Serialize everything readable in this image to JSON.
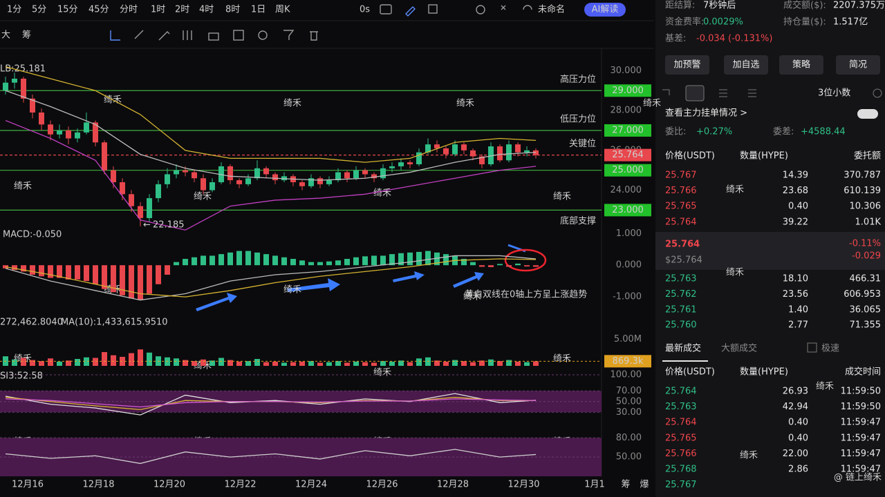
{
  "toolbar": {
    "intervals": [
      "1分",
      "5分",
      "15分",
      "45分",
      "分时",
      "1时",
      "2时",
      "4时",
      "8时",
      "1日",
      "周K"
    ],
    "active": 7,
    "timer": "0s",
    "layout": "未命名",
    "ai": "AI解读",
    "tools": [
      "大",
      "筹"
    ]
  },
  "kline": {
    "boll_label": "LB:25.181",
    "min_arrow": "←",
    "min_label": "22.185",
    "min_value": 22.185,
    "ylim": [
      21.8,
      30.5
    ],
    "yticks": [
      {
        "value": 30,
        "label": "30.000"
      },
      {
        "value": 28,
        "label": "28.000"
      },
      {
        "value": 26,
        "label": "26.000"
      },
      {
        "value": 24,
        "label": "24.000"
      }
    ],
    "levels": [
      {
        "value": 29,
        "label": "29.000",
        "name": "高压力位"
      },
      {
        "value": 27,
        "label": "27.000",
        "name": "低压力位"
      },
      {
        "value": 25.764,
        "label": "25.764",
        "name": "关键位",
        "color": "#e8474d"
      },
      {
        "value": 25,
        "label": "25.000"
      },
      {
        "value": 23,
        "label": "23.000",
        "name": "底部支撑"
      }
    ],
    "candles": [
      [
        29.0,
        29.7,
        28.8,
        29.4
      ],
      [
        29.4,
        29.9,
        29.1,
        29.6
      ],
      [
        29.6,
        29.7,
        28.4,
        28.6
      ],
      [
        28.6,
        28.8,
        27.6,
        27.9
      ],
      [
        27.9,
        28.1,
        27.0,
        27.3
      ],
      [
        27.3,
        27.5,
        26.5,
        26.8
      ],
      [
        26.8,
        27.3,
        26.6,
        27.0
      ],
      [
        27.0,
        27.2,
        26.3,
        26.6
      ],
      [
        26.6,
        27.1,
        26.4,
        26.9
      ],
      [
        26.9,
        27.9,
        26.8,
        27.4
      ],
      [
        27.4,
        27.5,
        26.2,
        26.4
      ],
      [
        26.4,
        26.5,
        24.8,
        25.0
      ],
      [
        25.0,
        25.2,
        24.1,
        24.4
      ],
      [
        24.4,
        24.6,
        23.5,
        23.8
      ],
      [
        23.8,
        24.0,
        22.9,
        23.2
      ],
      [
        23.2,
        23.4,
        22.185,
        22.6
      ],
      [
        22.6,
        23.8,
        22.4,
        23.6
      ],
      [
        23.6,
        24.5,
        23.4,
        24.3
      ],
      [
        24.3,
        25.1,
        24.1,
        24.8
      ],
      [
        24.8,
        25.3,
        24.6,
        25.0
      ],
      [
        25.0,
        25.2,
        24.7,
        24.9
      ],
      [
        24.9,
        25.0,
        24.4,
        24.6
      ],
      [
        24.6,
        24.8,
        23.8,
        24.0
      ],
      [
        24.0,
        24.6,
        23.9,
        24.4
      ],
      [
        24.4,
        25.4,
        24.3,
        25.2
      ],
      [
        25.2,
        25.3,
        24.3,
        24.5
      ],
      [
        24.5,
        24.6,
        24.1,
        24.3
      ],
      [
        24.3,
        24.8,
        24.2,
        24.6
      ],
      [
        24.6,
        25.5,
        24.5,
        25.1
      ],
      [
        25.1,
        25.2,
        24.6,
        24.8
      ],
      [
        24.8,
        24.9,
        24.3,
        24.5
      ],
      [
        24.5,
        24.9,
        24.4,
        24.7
      ],
      [
        24.7,
        24.8,
        24.2,
        24.4
      ],
      [
        24.4,
        24.5,
        24.0,
        24.2
      ],
      [
        24.2,
        24.8,
        24.1,
        24.6
      ],
      [
        24.6,
        24.7,
        24.1,
        24.3
      ],
      [
        24.3,
        24.7,
        24.2,
        24.5
      ],
      [
        24.5,
        25.1,
        24.4,
        24.9
      ],
      [
        24.9,
        25.0,
        24.4,
        24.6
      ],
      [
        24.6,
        25.2,
        24.5,
        25.0
      ],
      [
        25.0,
        25.1,
        24.6,
        24.8
      ],
      [
        24.8,
        24.9,
        24.4,
        24.6
      ],
      [
        24.6,
        25.3,
        24.5,
        25.1
      ],
      [
        25.1,
        25.4,
        24.9,
        25.2
      ],
      [
        25.2,
        25.6,
        25.0,
        25.4
      ],
      [
        25.4,
        25.5,
        25.1,
        25.3
      ],
      [
        25.3,
        26.1,
        25.2,
        25.9
      ],
      [
        25.9,
        26.6,
        25.8,
        26.3
      ],
      [
        26.3,
        26.5,
        25.9,
        26.1
      ],
      [
        26.1,
        26.2,
        25.6,
        25.8
      ],
      [
        25.8,
        26.5,
        25.7,
        26.3
      ],
      [
        26.3,
        26.4,
        25.8,
        26.0
      ],
      [
        26.0,
        26.1,
        25.5,
        25.7
      ],
      [
        25.7,
        25.8,
        25.1,
        25.3
      ],
      [
        25.3,
        26.4,
        25.2,
        26.2
      ],
      [
        26.2,
        26.3,
        25.4,
        25.5
      ],
      [
        25.5,
        26.5,
        25.4,
        26.3
      ],
      [
        26.3,
        26.4,
        25.7,
        25.9
      ],
      [
        25.9,
        26.2,
        25.7,
        26.0
      ],
      [
        26.0,
        26.1,
        25.6,
        25.764
      ]
    ],
    "line_index": [
      0,
      5,
      10,
      15,
      20,
      25,
      30,
      35,
      40,
      45,
      50,
      55,
      59
    ],
    "boll": [
      {
        "color": "#d6b431",
        "values": [
          30.2,
          29.6,
          29.0,
          27.8,
          26.0,
          25.6,
          25.6,
          25.6,
          25.4,
          25.6,
          26.4,
          26.6,
          26.5
        ]
      },
      {
        "color": "#bdbdbd",
        "values": [
          29.0,
          28.2,
          27.3,
          25.8,
          25.1,
          24.7,
          24.6,
          24.5,
          24.6,
          24.9,
          25.4,
          25.8,
          25.9
        ]
      },
      {
        "color": "#c23fc2",
        "values": [
          27.5,
          26.6,
          25.5,
          22.5,
          22.0,
          23.2,
          23.5,
          23.6,
          23.8,
          24.2,
          24.6,
          25.0,
          25.2
        ]
      }
    ],
    "dates": [
      "12月16",
      "12月18",
      "12月20",
      "12月22",
      "12月24",
      "12月26",
      "12月28",
      "12月30",
      "1月1"
    ],
    "corner": [
      "筹",
      "爆"
    ]
  },
  "macd": {
    "label": "MACD:-0.050",
    "ylim": [
      -1.15,
      1.05
    ],
    "yticks": [
      {
        "value": 1,
        "label": "1.000"
      },
      {
        "value": 0,
        "label": "0.000"
      },
      {
        "value": -1,
        "label": "-1.000"
      }
    ],
    "hist": [
      -0.1,
      -0.15,
      -0.2,
      -0.3,
      -0.35,
      -0.4,
      -0.4,
      -0.45,
      -0.45,
      -0.5,
      -0.6,
      -0.75,
      -0.85,
      -0.95,
      -1.05,
      -1.1,
      -0.9,
      -0.6,
      -0.3,
      0.1,
      0.2,
      0.25,
      0.3,
      0.3,
      0.35,
      0.4,
      0.45,
      0.45,
      0.4,
      0.35,
      0.3,
      0.25,
      0.2,
      0.15,
      0.1,
      0.1,
      0.12,
      0.15,
      0.2,
      0.25,
      0.28,
      0.3,
      0.3,
      0.35,
      0.38,
      0.4,
      0.42,
      0.45,
      0.4,
      0.35,
      0.3,
      0.2,
      0.1,
      -0.05,
      -0.06,
      0.04,
      -0.05,
      0.05,
      -0.04,
      -0.05
    ],
    "lines": [
      {
        "color": "#bdbdbd",
        "values": [
          -0.1,
          -0.5,
          -0.8,
          -1.1,
          -0.9,
          -0.5,
          -0.3,
          -0.2,
          -0.05,
          0.1,
          0.3,
          0.3,
          0.2
        ]
      },
      {
        "color": "#d6b431",
        "values": [
          -0.05,
          -0.3,
          -0.6,
          -0.9,
          -1.0,
          -0.8,
          -0.55,
          -0.35,
          -0.2,
          -0.05,
          0.15,
          0.2,
          0.18
        ]
      }
    ],
    "annotation": "黄白双线在0轴上方呈上涨趋势"
  },
  "volume": {
    "label": "272,462.8040",
    "ma_label": "MA(10):1,433,615.9510",
    "ylim": [
      0,
      5.6
    ],
    "yticks": [
      {
        "value": 5,
        "label": "5.00M"
      }
    ],
    "last": 0.8693,
    "last_label": "869.3k",
    "values": [
      1.8,
      1.2,
      1.5,
      1.1,
      0.9,
      1.4,
      0.8,
      1.0,
      1.3,
      1.6,
      1.5,
      2.6,
      2.0,
      1.7,
      2.4,
      3.1,
      2.5,
      1.8,
      1.6,
      1.4,
      1.1,
      0.9,
      1.2,
      1.0,
      1.5,
      1.1,
      0.8,
      0.9,
      1.3,
      0.7,
      0.8,
      0.6,
      0.7,
      0.8,
      0.9,
      0.6,
      0.7,
      0.9,
      0.6,
      0.8,
      0.7,
      0.6,
      0.9,
      0.8,
      1.0,
      0.7,
      1.4,
      1.6,
      1.0,
      0.8,
      1.1,
      0.9,
      0.7,
      1.0,
      1.2,
      0.9,
      1.1,
      0.8,
      0.7,
      0.8693
    ]
  },
  "rsi": {
    "label": "SI3:52.58",
    "ylim": [
      20,
      100
    ],
    "yticks": [
      {
        "value": 100,
        "label": "100.00"
      },
      {
        "value": 70,
        "label": "70.00"
      },
      {
        "value": 50,
        "label": "50.00"
      },
      {
        "value": 30,
        "label": "30.00"
      }
    ],
    "band": [
      30,
      70
    ],
    "lines": [
      {
        "color": "#e0e0e0",
        "values": [
          60,
          45,
          38,
          25,
          62,
          48,
          52,
          45,
          55,
          50,
          65,
          48,
          52.58
        ]
      },
      {
        "color": "#d6b431",
        "values": [
          58,
          50,
          42,
          35,
          52,
          50,
          50,
          48,
          52,
          51,
          58,
          52,
          52
        ]
      },
      {
        "color": "#d35bd3",
        "values": [
          55,
          52,
          46,
          40,
          48,
          50,
          50,
          49,
          51,
          51,
          55,
          53,
          52
        ]
      }
    ]
  },
  "osc": {
    "ylim": [
      20,
      90
    ],
    "yticks": [
      {
        "value": 80,
        "label": "80.00"
      },
      {
        "value": 50,
        "label": "50.00"
      }
    ],
    "band": [
      20,
      80
    ],
    "lines": [
      {
        "color": "#cfcfcf",
        "values": [
          55,
          48,
          52,
          40,
          58,
          50,
          55,
          47,
          60,
          52,
          62,
          50,
          54
        ]
      }
    ]
  },
  "watermark": "绮禾",
  "credit": "@ 链上绮禾",
  "panel": {
    "stats": [
      [
        "距结算:",
        "7秒钟后",
        "成交额($):",
        "2207.375万"
      ],
      [
        "资金费率:",
        "0.0029%",
        "持仓量($):",
        "1.517亿"
      ]
    ],
    "basis": [
      "基差:",
      "-0.034 (-0.131%)"
    ],
    "buttons": [
      "加预警",
      "加自选",
      "策略",
      "简况"
    ],
    "decimals": "3位小数",
    "main_orders": "查看主力挂单情况 >",
    "ratio": [
      "委比:",
      "+0.27%",
      "委差:",
      "+4588.44"
    ],
    "book_header": [
      "价格(USDT)",
      "数量(HYPE)",
      "委托额"
    ],
    "asks": [
      [
        "25.767",
        "14.39",
        "370.787"
      ],
      [
        "25.766",
        "23.68",
        "610.139"
      ],
      [
        "25.765",
        "0.40",
        "10.306"
      ],
      [
        "25.764",
        "39.22",
        "1.01K"
      ]
    ],
    "last": "25.764",
    "last_usd": "$25.764",
    "change_pct": "-0.11%",
    "change": "-0.029",
    "bids": [
      [
        "25.763",
        "18.10",
        "466.31"
      ],
      [
        "25.762",
        "23.56",
        "606.953"
      ],
      [
        "25.761",
        "1.40",
        "36.065"
      ],
      [
        "25.760",
        "2.77",
        "71.355"
      ]
    ],
    "tabs": [
      "最新成交",
      "大额成交",
      "极速"
    ],
    "trade_header": [
      "价格(USDT)",
      "数量(HYPE)",
      "成交时间"
    ],
    "trades": [
      {
        "side": "buy",
        "cells": [
          "25.764",
          "26.93",
          "11:59:50"
        ]
      },
      {
        "side": "buy",
        "cells": [
          "25.763",
          "42.94",
          "11:59:50"
        ]
      },
      {
        "side": "sell",
        "cells": [
          "25.764",
          "0.40",
          "11:59:47"
        ]
      },
      {
        "side": "sell",
        "cells": [
          "25.765",
          "0.40",
          "11:59:47"
        ]
      },
      {
        "side": "sell",
        "cells": [
          "25.766",
          "22.00",
          "11:59:47"
        ]
      },
      {
        "side": "buy",
        "cells": [
          "25.768",
          "2.86",
          "11:59:47"
        ]
      },
      {
        "side": "buy",
        "cells": [
          "25.767"
        ]
      }
    ]
  }
}
